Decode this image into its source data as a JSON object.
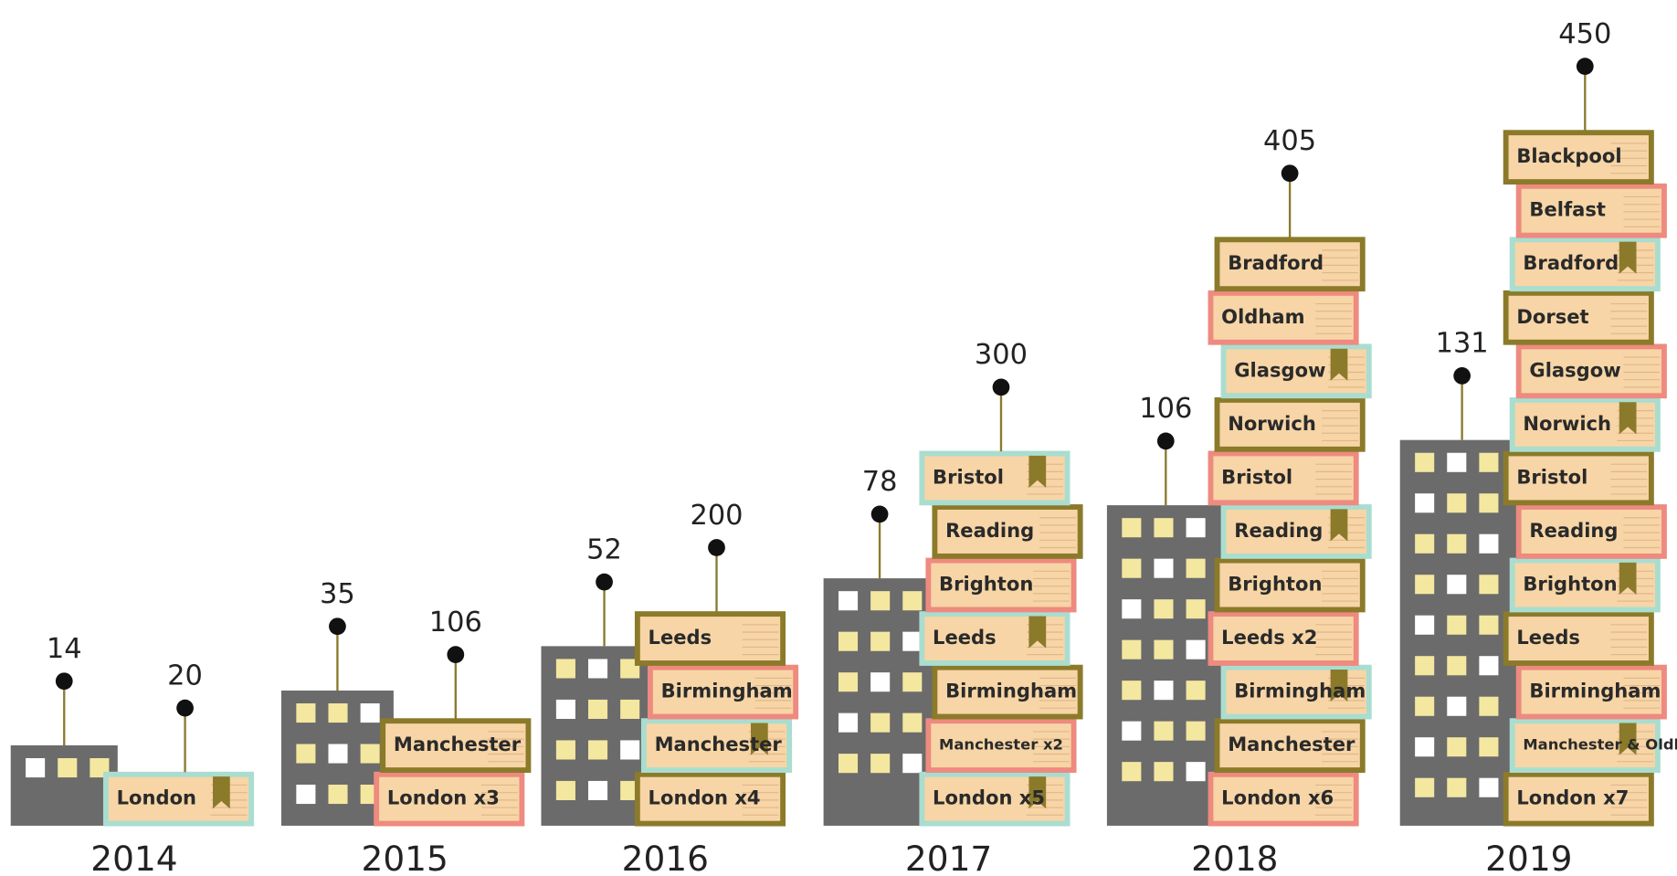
{
  "chart_data": {
    "type": "pictogram",
    "categories": [
      "2014",
      "2015",
      "2016",
      "2017",
      "2018",
      "2019"
    ],
    "buildings": [
      14,
      35,
      52,
      78,
      106,
      131
    ],
    "books": [
      20,
      106,
      200,
      300,
      405,
      450
    ],
    "book_stacks": [
      [
        "London"
      ],
      [
        "London x3",
        "Manchester"
      ],
      [
        "London x4",
        "Manchester",
        "Birmingham",
        "Leeds"
      ],
      [
        "London x5",
        "Manchester x2",
        "Birmingham",
        "Leeds",
        "Brighton",
        "Reading",
        "Bristol"
      ],
      [
        "London x6",
        "Manchester",
        "Birmingham",
        "Leeds x2",
        "Brighton",
        "Reading",
        "Bristol",
        "Norwich",
        "Glasgow",
        "Oldham",
        "Bradford"
      ],
      [
        "London x7",
        "Manchester & Oldham",
        "Birmingham",
        "Leeds",
        "Brighton",
        "Reading",
        "Bristol",
        "Norwich",
        "Glasgow",
        "Dorset",
        "Bradford",
        "Belfast",
        "Blackpool"
      ]
    ],
    "building_color": "#6b6b6b",
    "pin_color": "#8a7a2e"
  }
}
